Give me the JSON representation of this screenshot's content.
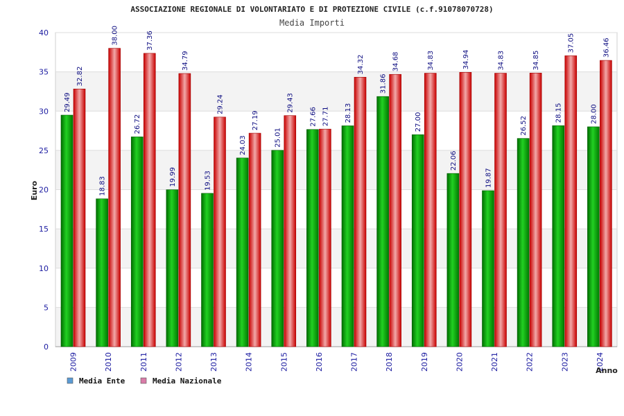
{
  "chart_data": {
    "type": "bar",
    "title": "ASSOCIAZIONE REGIONALE DI VOLONTARIATO E DI PROTEZIONE CIVILE (c.f.91078070728)",
    "subtitle": "Media Importi",
    "xlabel": "Anno",
    "ylabel": "Euro",
    "ylim": [
      0,
      40
    ],
    "yticks": [
      0,
      5,
      10,
      15,
      20,
      25,
      30,
      35,
      40
    ],
    "grid": true,
    "legend_position": "bottom-left",
    "categories": [
      "2009",
      "2010",
      "2011",
      "2012",
      "2013",
      "2014",
      "2015",
      "2016",
      "2017",
      "2018",
      "2019",
      "2020",
      "2021",
      "2022",
      "2023",
      "2024"
    ],
    "series": [
      {
        "name": "Media Ente",
        "color": "#00b400",
        "legend_color": "#5b9bd5",
        "values": [
          29.49,
          18.83,
          26.72,
          19.99,
          19.53,
          24.03,
          25.01,
          27.66,
          28.13,
          31.86,
          27.0,
          22.06,
          19.87,
          26.52,
          28.15,
          28.0
        ],
        "labels": [
          "29.49",
          "18.83",
          "26.72",
          "19.99",
          "19.53",
          "24.03",
          "25.01",
          "27.66",
          "28.13",
          "31.86",
          "27.00",
          "22.06",
          "19.87",
          "26.52",
          "28.15",
          "28.00"
        ]
      },
      {
        "name": "Media Nazionale",
        "color": "#e00000",
        "legend_color": "#d97ca8",
        "values": [
          32.82,
          38.0,
          37.36,
          34.79,
          29.24,
          27.19,
          29.43,
          27.71,
          34.32,
          34.68,
          34.83,
          34.94,
          34.83,
          34.85,
          37.05,
          36.46
        ],
        "labels": [
          "32.82",
          "38.00",
          "37.36",
          "34.79",
          "29.24",
          "27.19",
          "29.43",
          "27.71",
          "34.32",
          "34.68",
          "34.83",
          "34.94",
          "34.83",
          "34.85",
          "37.05",
          "36.46"
        ]
      }
    ]
  }
}
